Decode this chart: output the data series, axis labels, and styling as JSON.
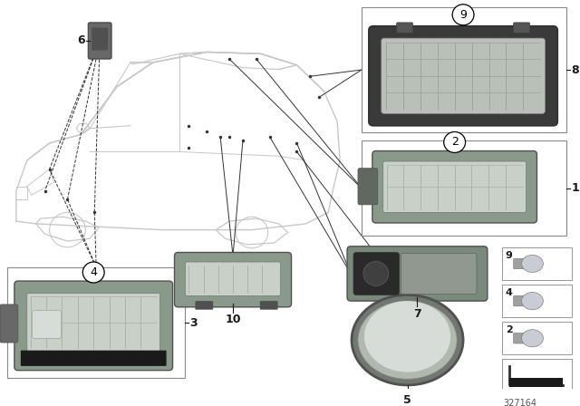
{
  "bg_color": "#ffffff",
  "part_number": "327164",
  "car_color": "#c8c8c8",
  "line_color": "#333333",
  "box_color": "#444444",
  "lamp_gray": "#9aaa9a",
  "lamp_light": "#d4dcd4",
  "lamp_dark": "#555855",
  "lamp_housing": "#6a7a6a",
  "small_bulb_color": "#c8ccd0",
  "black": "#1a1a1a",
  "dark_gray": "#484848"
}
